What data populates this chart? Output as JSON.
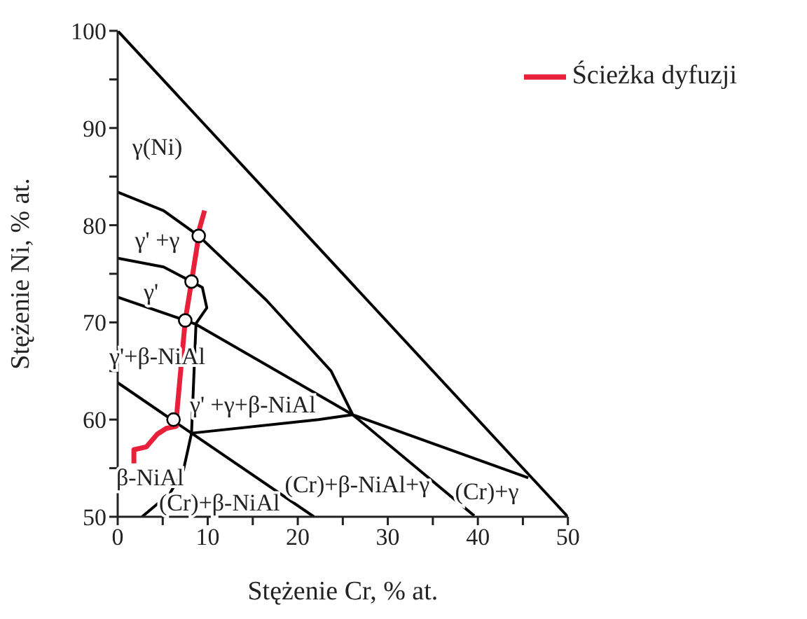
{
  "chart_data": {
    "type": "line",
    "xlabel": "Stężenie Cr, % at.",
    "ylabel": "Stężenie Ni, % at.",
    "xlim": [
      0,
      50
    ],
    "xticks": [
      0,
      {
        "value": 5,
        "label": null
      },
      10,
      {
        "value": 15,
        "label": null
      },
      20,
      {
        "value": 25,
        "label": null
      },
      30,
      {
        "value": 35,
        "label": null
      },
      40,
      {
        "value": 45,
        "label": null
      },
      50
    ],
    "ylim": [
      50,
      100
    ],
    "yticks": [
      50,
      {
        "value": 55,
        "label": null
      },
      60,
      {
        "value": 65,
        "label": null
      },
      70,
      {
        "value": 75,
        "label": null
      },
      80,
      {
        "value": 85,
        "label": null
      },
      90,
      {
        "value": 95,
        "label": null
      },
      100
    ],
    "legend": "top right",
    "marker": "none",
    "series": [
      {
        "color": "#000000",
        "x": [
          0,
          50
        ],
        "values": [
          100,
          50
        ]
      },
      {
        "color": "#000000",
        "x": [
          0,
          5.1,
          9.0,
          16.5,
          23.7,
          26.1,
          39.6
        ],
        "values": [
          83.4,
          81.5,
          78.9,
          72.3,
          65.0,
          60.5,
          50.1
        ]
      },
      {
        "color": "#000000",
        "x": [
          0,
          5.1,
          8.2,
          9.4,
          9.9,
          8.7
        ],
        "values": [
          76.6,
          75.7,
          74.2,
          73.6,
          71.5,
          69.9
        ]
      },
      {
        "color": "#000000",
        "x": [
          0,
          7.5,
          8.7,
          26.1,
          45.6
        ],
        "values": [
          72.6,
          70.2,
          69.8,
          60.5,
          54.0
        ]
      },
      {
        "color": "#000000",
        "x": [
          8.7,
          8.2,
          7.8,
          7.3,
          5.8,
          2.7
        ],
        "values": [
          69.9,
          58.6,
          56.9,
          54.8,
          52.4,
          50
        ]
      },
      {
        "color": "#000000",
        "x": [
          0,
          8.2,
          21.8
        ],
        "values": [
          63.8,
          58.6,
          50
        ]
      },
      {
        "color": "#000000",
        "x": [
          8.2,
          22.3,
          26.1
        ],
        "values": [
          58.6,
          60.0,
          60.5
        ]
      },
      {
        "name": "Ścieżka dyfuzji",
        "color": "#e8203a",
        "x": [
          1.8,
          1.8,
          3.2,
          4.4,
          5.4,
          6.5,
          6.6,
          7.5,
          8.2,
          9.0,
          9.1,
          9.65
        ],
        "values": [
          55.5,
          56.9,
          57.2,
          58.5,
          59.1,
          59.3,
          61.0,
          70.2,
          74.2,
          78.9,
          79.7,
          81.5
        ]
      },
      {
        "type": "scatter",
        "marker": "circle",
        "color": "#ffffff",
        "x": [
          9.0,
          8.2,
          7.5,
          6.2
        ],
        "values": [
          78.9,
          74.2,
          70.2,
          60.0
        ]
      }
    ],
    "annotations": [
      "γ(Ni)",
      "γ' +γ",
      "γ'",
      "γ'+β-NiAl",
      "γ' +γ+β-NiAl",
      "β-NiAl",
      "(Cr)+β-NiAl",
      "(Cr)+β-NiAl+γ",
      "(Cr)+γ"
    ]
  }
}
